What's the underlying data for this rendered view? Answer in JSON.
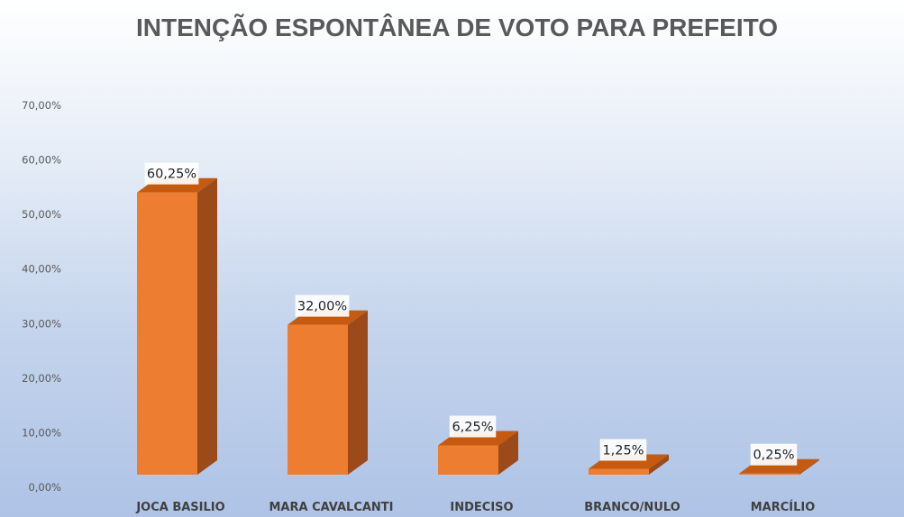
{
  "chart_data": {
    "type": "bar",
    "title": "INTENÇÃO ESPONTÂNEA DE VOTO PARA PREFEITO",
    "categories": [
      "JOCA BASILIO",
      "MARA CAVALCANTI",
      "INDECISO",
      "BRANCO/NULO",
      "MARCÍLIO"
    ],
    "values": [
      60.25,
      32.0,
      6.25,
      1.25,
      0.25
    ],
    "data_labels": [
      "60,25%",
      "32,00%",
      "6,25%",
      "1,25%",
      "0,25%"
    ],
    "y_ticks": [
      0,
      10,
      20,
      30,
      40,
      50,
      60,
      70
    ],
    "y_tick_labels": [
      "0,00%",
      "10,00%",
      "20,00%",
      "30,00%",
      "40,00%",
      "50,00%",
      "60,00%",
      "70,00%"
    ],
    "ylim": [
      0,
      70
    ],
    "xlabel": "",
    "ylabel": "",
    "grid": false,
    "legend": "none",
    "style": "3d-column",
    "colors": {
      "bar_front": "#ED7D31",
      "bar_side": "#9C4A1A",
      "bar_top": "#C55A11",
      "label_box": "#FFFFFF"
    }
  }
}
